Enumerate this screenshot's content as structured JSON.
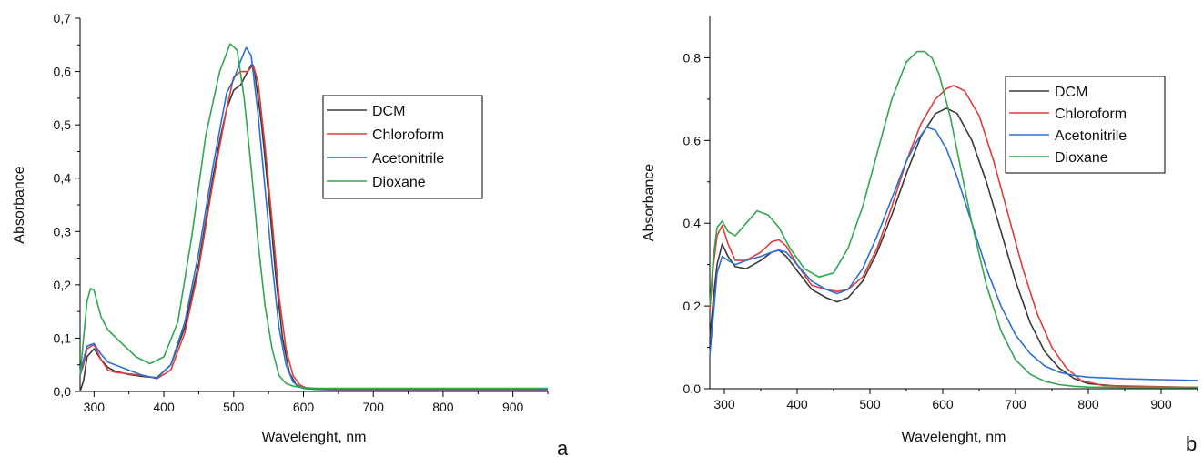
{
  "chart_data": [
    {
      "type": "line",
      "panel_label": "a",
      "xlabel": "Wavelenght, nm",
      "ylabel": "Absorbance",
      "xlim": [
        280,
        950
      ],
      "ylim": [
        0,
        0.7
      ],
      "xticks": [
        300,
        400,
        500,
        600,
        700,
        800,
        900
      ],
      "yticks": [
        "0,0",
        "0,1",
        "0,2",
        "0,3",
        "0,4",
        "0,5",
        "0,6",
        "0,7"
      ],
      "yticks_values": [
        0,
        0.1,
        0.2,
        0.3,
        0.4,
        0.5,
        0.6,
        0.7
      ],
      "legend_position": "center-right",
      "grid": false,
      "series": [
        {
          "name": "DCM",
          "color": "#3a3a3a",
          "x": [
            280,
            285,
            290,
            300,
            310,
            320,
            330,
            350,
            370,
            390,
            410,
            430,
            450,
            470,
            480,
            490,
            500,
            510,
            520,
            525,
            530,
            540,
            550,
            560,
            570,
            580,
            590,
            600,
            620,
            650,
            700,
            800,
            950
          ],
          "y": [
            0.0,
            0.02,
            0.065,
            0.08,
            0.06,
            0.045,
            0.038,
            0.032,
            0.028,
            0.026,
            0.05,
            0.12,
            0.24,
            0.4,
            0.47,
            0.53,
            0.565,
            0.575,
            0.6,
            0.612,
            0.6,
            0.5,
            0.37,
            0.22,
            0.1,
            0.035,
            0.012,
            0.006,
            0.004,
            0.003,
            0.003,
            0.003,
            0.003
          ]
        },
        {
          "name": "Chloroform",
          "color": "#e03c3c",
          "x": [
            280,
            285,
            290,
            300,
            310,
            320,
            330,
            350,
            370,
            390,
            410,
            430,
            450,
            470,
            490,
            500,
            510,
            520,
            528,
            535,
            545,
            555,
            565,
            575,
            585,
            595,
            605,
            620,
            650,
            700,
            800,
            950
          ],
          "y": [
            0.03,
            0.05,
            0.08,
            0.088,
            0.06,
            0.04,
            0.036,
            0.033,
            0.03,
            0.024,
            0.04,
            0.11,
            0.23,
            0.39,
            0.53,
            0.59,
            0.6,
            0.6,
            0.612,
            0.58,
            0.46,
            0.32,
            0.18,
            0.08,
            0.03,
            0.012,
            0.006,
            0.004,
            0.003,
            0.003,
            0.003,
            0.003
          ]
        },
        {
          "name": "Acetonitrile",
          "color": "#2b6fd6",
          "x": [
            280,
            285,
            290,
            300,
            310,
            320,
            330,
            350,
            370,
            390,
            410,
            430,
            450,
            470,
            490,
            500,
            510,
            518,
            525,
            535,
            545,
            555,
            565,
            575,
            585,
            595,
            605,
            620,
            650,
            700,
            800,
            950
          ],
          "y": [
            0.03,
            0.06,
            0.085,
            0.09,
            0.07,
            0.055,
            0.05,
            0.04,
            0.03,
            0.025,
            0.05,
            0.13,
            0.26,
            0.42,
            0.56,
            0.585,
            0.62,
            0.645,
            0.63,
            0.52,
            0.38,
            0.24,
            0.12,
            0.05,
            0.018,
            0.008,
            0.005,
            0.004,
            0.004,
            0.004,
            0.004,
            0.004
          ]
        },
        {
          "name": "Dioxane",
          "color": "#2fa84f",
          "x": [
            280,
            285,
            290,
            295,
            300,
            310,
            320,
            340,
            360,
            380,
            400,
            420,
            440,
            460,
            480,
            495,
            505,
            515,
            525,
            535,
            545,
            555,
            565,
            575,
            585,
            595,
            605,
            620,
            650,
            700,
            800,
            950
          ],
          "y": [
            0.03,
            0.1,
            0.17,
            0.193,
            0.19,
            0.14,
            0.115,
            0.09,
            0.065,
            0.052,
            0.065,
            0.13,
            0.29,
            0.48,
            0.6,
            0.652,
            0.64,
            0.55,
            0.42,
            0.28,
            0.16,
            0.08,
            0.03,
            0.015,
            0.01,
            0.008,
            0.007,
            0.006,
            0.006,
            0.006,
            0.006,
            0.006
          ]
        }
      ]
    },
    {
      "type": "line",
      "panel_label": "b",
      "xlabel": "Wavelenght, nm",
      "ylabel": "Absorbance",
      "xlim": [
        280,
        950
      ],
      "ylim": [
        0,
        0.9
      ],
      "xticks": [
        300,
        400,
        500,
        600,
        700,
        800,
        900
      ],
      "yticks": [
        "0,0",
        "0,2",
        "0,4",
        "0,6",
        "0,8"
      ],
      "yticks_values": [
        0,
        0.2,
        0.4,
        0.6,
        0.8
      ],
      "legend_position": "top-right",
      "grid": false,
      "series": [
        {
          "name": "DCM",
          "color": "#3a3a3a",
          "x": [
            280,
            285,
            290,
            297,
            305,
            315,
            330,
            350,
            365,
            375,
            385,
            400,
            420,
            440,
            455,
            470,
            490,
            510,
            530,
            550,
            570,
            590,
            605,
            620,
            640,
            660,
            680,
            700,
            720,
            740,
            760,
            780,
            800,
            850,
            950
          ],
          "y": [
            0.12,
            0.22,
            0.3,
            0.35,
            0.32,
            0.295,
            0.29,
            0.31,
            0.33,
            0.335,
            0.32,
            0.285,
            0.24,
            0.22,
            0.21,
            0.22,
            0.26,
            0.33,
            0.42,
            0.52,
            0.61,
            0.665,
            0.678,
            0.665,
            0.6,
            0.5,
            0.38,
            0.26,
            0.16,
            0.09,
            0.05,
            0.025,
            0.012,
            0.005,
            0.003
          ]
        },
        {
          "name": "Chloroform",
          "color": "#e03c3c",
          "x": [
            280,
            285,
            290,
            297,
            305,
            315,
            330,
            350,
            365,
            375,
            385,
            400,
            420,
            440,
            455,
            470,
            490,
            510,
            530,
            550,
            570,
            590,
            605,
            615,
            630,
            650,
            670,
            690,
            710,
            730,
            750,
            770,
            790,
            820,
            950
          ],
          "y": [
            0.19,
            0.3,
            0.37,
            0.395,
            0.35,
            0.31,
            0.31,
            0.33,
            0.355,
            0.36,
            0.345,
            0.3,
            0.25,
            0.24,
            0.235,
            0.24,
            0.27,
            0.34,
            0.44,
            0.55,
            0.64,
            0.7,
            0.725,
            0.733,
            0.72,
            0.66,
            0.55,
            0.42,
            0.29,
            0.18,
            0.1,
            0.05,
            0.02,
            0.008,
            0.003
          ]
        },
        {
          "name": "Acetonitrile",
          "color": "#2b6fd6",
          "x": [
            280,
            285,
            290,
            297,
            305,
            315,
            330,
            350,
            365,
            375,
            385,
            400,
            420,
            440,
            455,
            470,
            490,
            510,
            530,
            550,
            565,
            578,
            590,
            605,
            620,
            640,
            660,
            680,
            700,
            720,
            740,
            760,
            780,
            800,
            850,
            950
          ],
          "y": [
            0.08,
            0.18,
            0.28,
            0.32,
            0.31,
            0.3,
            0.31,
            0.32,
            0.33,
            0.335,
            0.33,
            0.3,
            0.26,
            0.24,
            0.23,
            0.24,
            0.29,
            0.37,
            0.46,
            0.55,
            0.6,
            0.632,
            0.625,
            0.58,
            0.51,
            0.4,
            0.29,
            0.2,
            0.13,
            0.085,
            0.055,
            0.04,
            0.032,
            0.028,
            0.024,
            0.02
          ]
        },
        {
          "name": "Dioxane",
          "color": "#2fa84f",
          "x": [
            280,
            285,
            290,
            297,
            305,
            315,
            330,
            345,
            360,
            375,
            390,
            410,
            430,
            450,
            470,
            490,
            510,
            530,
            550,
            565,
            575,
            585,
            595,
            610,
            625,
            640,
            660,
            680,
            700,
            720,
            740,
            760,
            780,
            800,
            850,
            950
          ],
          "y": [
            0.2,
            0.32,
            0.39,
            0.405,
            0.38,
            0.37,
            0.4,
            0.43,
            0.42,
            0.39,
            0.34,
            0.29,
            0.27,
            0.28,
            0.34,
            0.44,
            0.57,
            0.7,
            0.79,
            0.815,
            0.815,
            0.8,
            0.76,
            0.66,
            0.53,
            0.4,
            0.25,
            0.14,
            0.07,
            0.035,
            0.018,
            0.01,
            0.006,
            0.004,
            0.003,
            0.003
          ]
        }
      ]
    }
  ]
}
